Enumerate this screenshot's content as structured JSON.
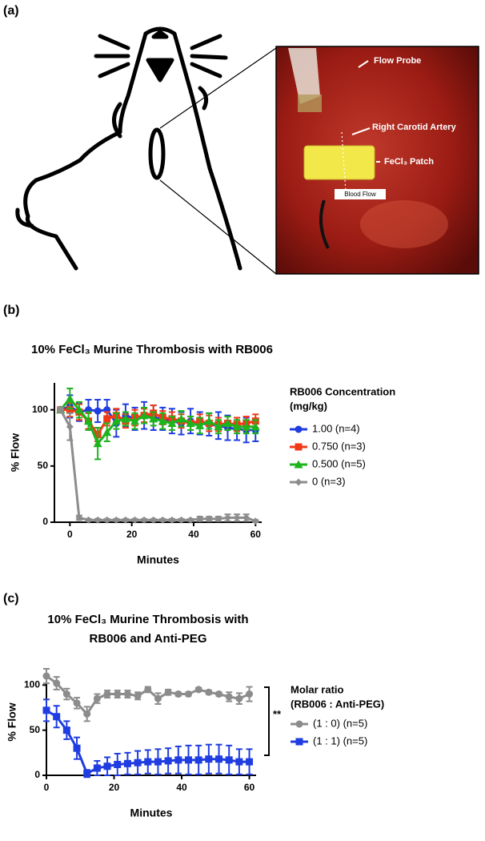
{
  "panel_a": {
    "label": "(a)",
    "photo_labels": [
      "Flow Probe",
      "Right Carotid Artery",
      "FeCl₃ Patch",
      "Blood Flow"
    ]
  },
  "chart_data": [
    {
      "type": "line",
      "label": "(b)",
      "title": [
        "10% FeCl₃ Murine Thrombosis with RB006"
      ],
      "x_label": "Minutes",
      "y_label": "% Flow",
      "legend_title": [
        "RB006 Concentration",
        "(mg/kg)"
      ],
      "x": [
        -3,
        0,
        3,
        6,
        9,
        12,
        15,
        18,
        21,
        24,
        27,
        30,
        33,
        36,
        39,
        42,
        45,
        48,
        51,
        54,
        57,
        60
      ],
      "series": [
        {
          "name": "1.00 (n=4)",
          "color": "#1f3de0",
          "marker": "circle",
          "values": [
            100,
            103,
            98,
            100,
            99,
            100,
            88,
            95,
            92,
            95,
            93,
            92,
            90,
            88,
            90,
            88,
            87,
            86,
            84,
            83,
            82,
            82
          ],
          "errors": [
            2,
            10,
            8,
            9,
            10,
            9,
            12,
            10,
            10,
            12,
            11,
            10,
            11,
            10,
            11,
            10,
            10,
            12,
            11,
            10,
            11,
            10
          ]
        },
        {
          "name": "0.750 (n=3)",
          "color": "#f03a17",
          "marker": "square",
          "values": [
            100,
            100,
            98,
            90,
            78,
            92,
            95,
            90,
            93,
            95,
            97,
            93,
            92,
            90,
            88,
            90,
            88,
            87,
            88,
            87,
            88,
            90
          ],
          "errors": [
            2,
            6,
            7,
            7,
            6,
            6,
            6,
            6,
            7,
            6,
            7,
            6,
            6,
            6,
            6,
            6,
            7,
            6,
            6,
            6,
            6,
            6
          ]
        },
        {
          "name": "0.500 (n=5)",
          "color": "#1db31d",
          "marker": "triangle",
          "values": [
            100,
            110,
            100,
            90,
            70,
            80,
            90,
            92,
            90,
            95,
            92,
            90,
            88,
            92,
            88,
            86,
            90,
            85,
            88,
            85,
            85,
            85
          ],
          "errors": [
            2,
            9,
            7,
            8,
            14,
            8,
            7,
            6,
            7,
            7,
            6,
            7,
            6,
            7,
            6,
            7,
            7,
            6,
            6,
            6,
            6,
            6
          ]
        },
        {
          "name": "0 (n=3)",
          "color": "#8c8c8c",
          "marker": "diamond",
          "values": [
            100,
            85,
            4,
            2,
            2,
            2,
            2,
            2,
            2,
            2,
            2,
            2,
            2,
            2,
            2,
            3,
            3,
            3,
            4,
            4,
            4,
            1
          ],
          "errors": [
            2,
            12,
            2,
            1,
            1,
            1,
            1,
            1,
            1,
            1,
            1,
            1,
            1,
            1,
            1,
            2,
            2,
            2,
            3,
            3,
            3,
            1
          ]
        }
      ],
      "xlim": [
        -5,
        62
      ],
      "xticks": [
        0,
        20,
        40,
        60
      ],
      "ylim": [
        0,
        124
      ],
      "yticks": [
        0,
        50,
        100
      ]
    },
    {
      "type": "line",
      "label": "(c)",
      "title": [
        "10% FeCl₃ Murine Thrombosis with",
        "RB006 and Anti-PEG"
      ],
      "x_label": "Minutes",
      "y_label": "% Flow",
      "legend_title": [
        "Molar ratio",
        "(RB006 : Anti-PEG)"
      ],
      "annotation": "**",
      "x": [
        0,
        3,
        6,
        9,
        12,
        15,
        18,
        21,
        24,
        27,
        30,
        33,
        36,
        39,
        42,
        45,
        48,
        51,
        54,
        57,
        60
      ],
      "series": [
        {
          "name": "(1 : 0) (n=5)",
          "color": "#8c8c8c",
          "marker": "circle",
          "values": [
            110,
            102,
            90,
            80,
            68,
            85,
            90,
            90,
            90,
            88,
            95,
            85,
            92,
            90,
            90,
            95,
            92,
            90,
            87,
            85,
            90
          ],
          "errors": [
            8,
            7,
            6,
            6,
            8,
            5,
            4,
            4,
            4,
            4,
            3,
            6,
            3,
            2,
            2,
            2,
            2,
            2,
            5,
            6,
            8
          ]
        },
        {
          "name": "(1 : 1) (n=5)",
          "color": "#1f3de0",
          "marker": "square",
          "values": [
            72,
            65,
            50,
            30,
            2,
            8,
            10,
            12,
            13,
            14,
            15,
            15,
            16,
            17,
            17,
            17,
            18,
            18,
            17,
            15,
            15
          ],
          "errors": [
            12,
            12,
            10,
            12,
            4,
            8,
            10,
            12,
            12,
            13,
            13,
            14,
            14,
            15,
            16,
            16,
            16,
            16,
            16,
            14,
            14
          ]
        }
      ],
      "xlim": [
        0,
        62
      ],
      "xticks": [
        0,
        20,
        40,
        60
      ],
      "ylim": [
        0,
        118
      ],
      "yticks": [
        0,
        50,
        100
      ]
    }
  ]
}
